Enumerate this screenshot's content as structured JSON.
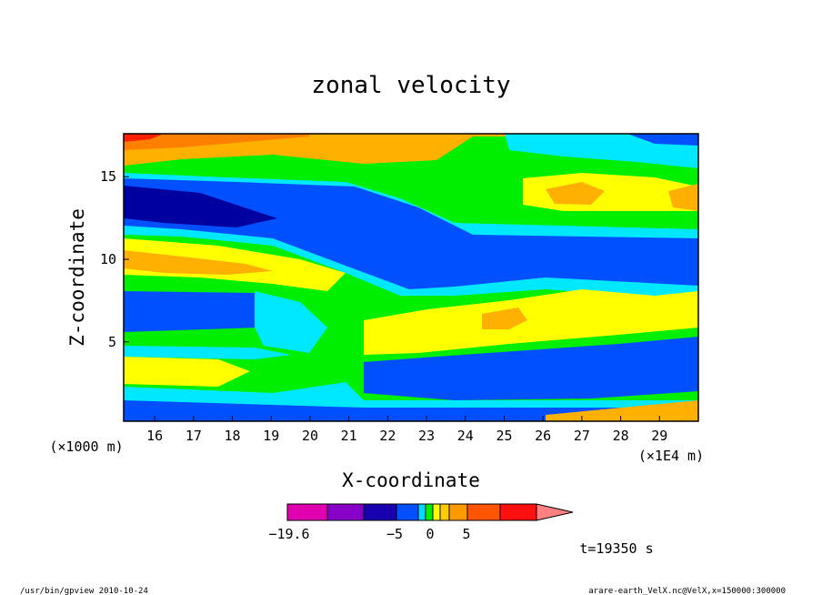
{
  "chart_data": {
    "type": "heatmap",
    "title": "zonal velocity",
    "xlabel": "X-coordinate",
    "ylabel": "Z-coordinate",
    "x_unit_label": "(×1E4 m)",
    "y_unit_label": "(×1000 m)",
    "x_ticks": [
      "16",
      "17",
      "18",
      "19",
      "20",
      "21",
      "22",
      "23",
      "24",
      "25",
      "26",
      "27",
      "28",
      "29"
    ],
    "y_ticks": [
      "5",
      "10",
      "15"
    ],
    "xlim": [
      15.2,
      30.0
    ],
    "ylim": [
      0.2,
      17.6
    ],
    "time_label": "t=19350 s",
    "colorbar": {
      "labels": [
        "−19.6",
        "−5",
        "0",
        "5"
      ],
      "colors": [
        "#e000b0",
        "#8800c8",
        "#1800b0",
        "#0050ff",
        "#00d8ff",
        "#00f000",
        "#ffff00",
        "#ffcc00",
        "#ff9900",
        "#ff5500",
        "#ff1010",
        "#ff8080"
      ]
    },
    "palette": {
      "deep_blue": "#0000a0",
      "blue": "#0050ff",
      "cyan": "#00e8ff",
      "green": "#00ee00",
      "yellow": "#ffff00",
      "light_orange": "#ffb000",
      "orange": "#ff8000",
      "red": "#ff2000"
    },
    "grid": false
  },
  "footer": {
    "left": "/usr/bin/gpview   2010-10-24",
    "right": "arare-earth_VelX.nc@VelX,x=150000:300000"
  }
}
